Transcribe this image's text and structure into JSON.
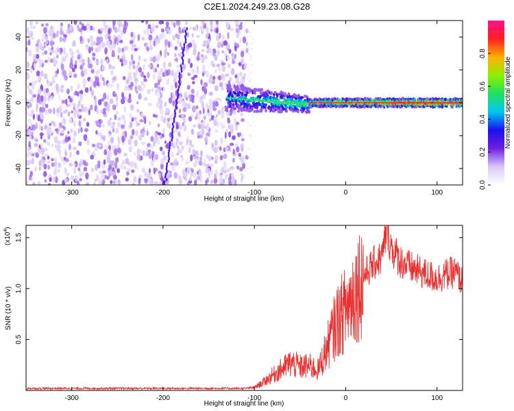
{
  "title": "C2E1.2024.249.23.08.G28",
  "chart_data": [
    {
      "type": "heatmap",
      "xlabel": "Height of straight line (km)",
      "ylabel": "Frequency (Hz)",
      "xlim": [
        -350,
        128
      ],
      "ylim": [
        -50,
        50
      ],
      "xticks": [
        -300,
        -200,
        -100,
        0,
        100
      ],
      "yticks": [
        -40,
        -20,
        0,
        20,
        40
      ],
      "colorbar": {
        "label": "Normalized spectral amplitude",
        "range": [
          0,
          1
        ],
        "ticks": [
          0.0,
          0.2,
          0.4,
          0.6,
          0.8
        ],
        "tick_labels": [
          "0.0",
          "0.2",
          "0.4",
          "0.6",
          "0.8"
        ],
        "stops": [
          "#ffffff",
          "#d8c8f8",
          "#7020e0",
          "#1a10f0",
          "#00c8f0",
          "#20e060",
          "#90f000",
          "#ffb000",
          "#ff2020",
          "#ff1090"
        ]
      },
      "features": [
        {
          "name": "noise",
          "x_range": [
            -350,
            -108
          ],
          "y_range": [
            -50,
            50
          ],
          "amplitude": 0.15
        },
        {
          "name": "carrier",
          "x_range": [
            -130,
            128
          ],
          "y_center": 0,
          "amplitude_range": [
            0.4,
            0.95
          ]
        }
      ]
    },
    {
      "type": "line",
      "xlabel": "Height of straight line (km)",
      "ylabel": "SNR (10 * v/v)",
      "ymultiplier": "(x10",
      "ymultiplier_exp": "4",
      "ymultiplier_close": ")",
      "xlim": [
        -350,
        128
      ],
      "ylim": [
        0,
        16200
      ],
      "xticks": [
        -300,
        -200,
        -100,
        0,
        100
      ],
      "yticks": [
        5000,
        10000,
        15000
      ],
      "ytick_labels": [
        "0.5",
        "1.0",
        "1.5"
      ],
      "color": "#e83030",
      "series": [
        {
          "values": [
            [
              -350,
              200
            ],
            [
              -300,
              200
            ],
            [
              -250,
              200
            ],
            [
              -200,
              200
            ],
            [
              -150,
              200
            ],
            [
              -110,
              200
            ],
            [
              -100,
              300
            ],
            [
              -90,
              800
            ],
            [
              -80,
              1500
            ],
            [
              -70,
              2100
            ],
            [
              -60,
              2700
            ],
            [
              -50,
              2300
            ],
            [
              -40,
              2400
            ],
            [
              -30,
              2000
            ],
            [
              -20,
              4300
            ],
            [
              -10,
              6700
            ],
            [
              0,
              8000
            ],
            [
              10,
              9800
            ],
            [
              20,
              11300
            ],
            [
              30,
              12400
            ],
            [
              40,
              13100
            ],
            [
              45,
              16000
            ],
            [
              50,
              14000
            ],
            [
              60,
              12700
            ],
            [
              70,
              12100
            ],
            [
              80,
              11700
            ],
            [
              90,
              11300
            ],
            [
              100,
              11000
            ],
            [
              110,
              11400
            ],
            [
              120,
              11600
            ],
            [
              128,
              10600
            ]
          ]
        }
      ]
    }
  ]
}
